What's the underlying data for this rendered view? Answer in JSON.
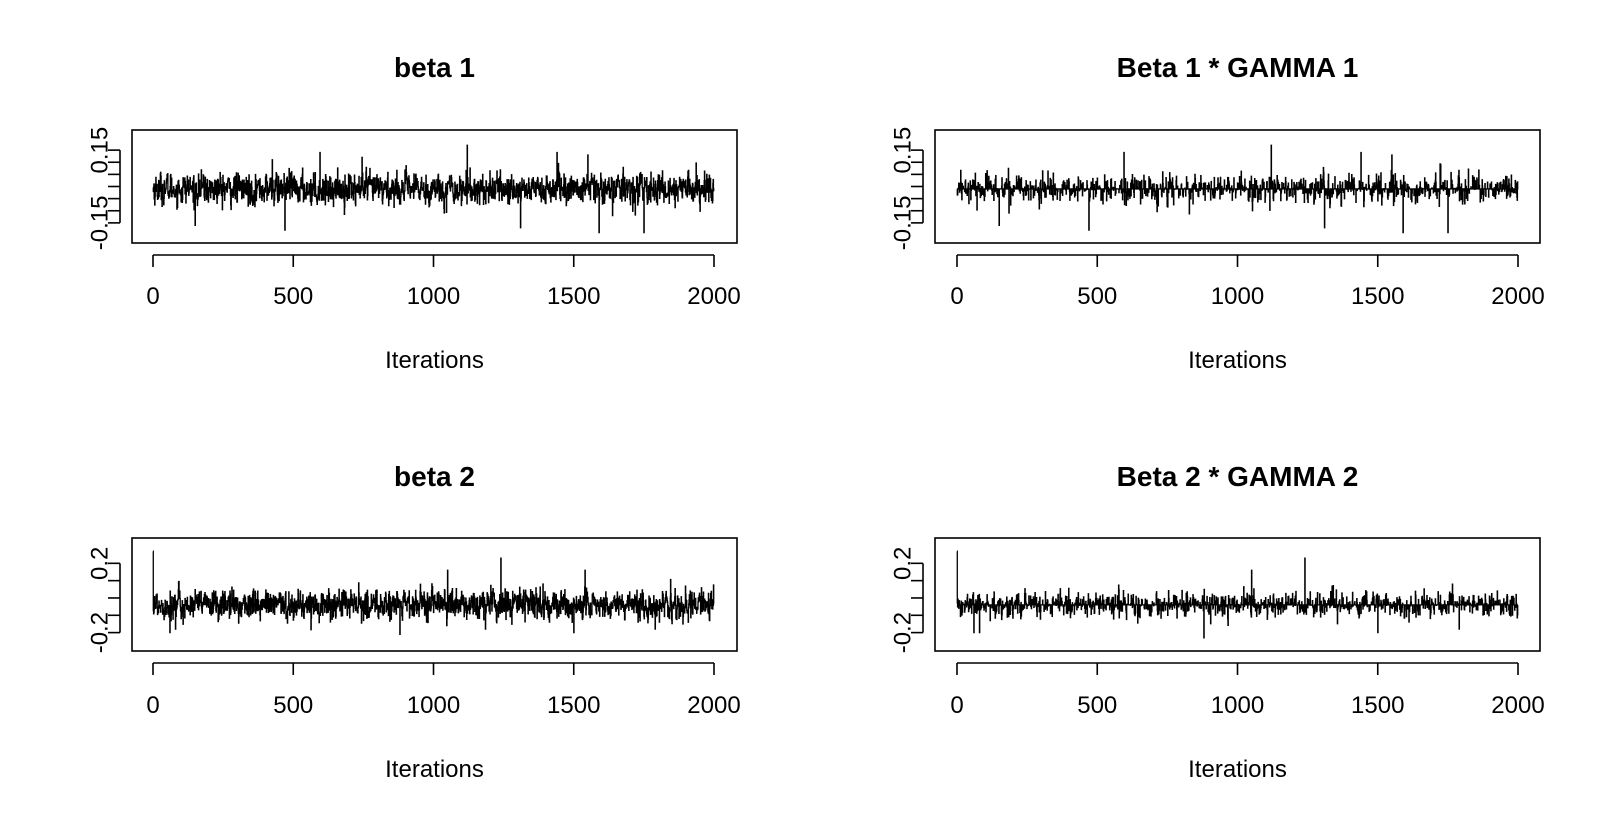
{
  "chart_data": [
    {
      "type": "line",
      "title": "beta 1",
      "xlabel": "Iterations",
      "ylabel": "",
      "xlim": [
        0,
        2000
      ],
      "ylim": [
        -0.2,
        0.2
      ],
      "x_ticks": [
        0,
        500,
        1000,
        1500,
        2000
      ],
      "x_tick_labels": [
        "0",
        "500",
        "1000",
        "1500",
        "2000"
      ],
      "y_ticks": [
        -0.15,
        -0.1,
        -0.05,
        0,
        0.05,
        0.1,
        0.15
      ],
      "y_tick_labels": [
        "-0.15",
        "",
        "",
        "",
        "",
        "",
        "0.15"
      ],
      "n_iterations": 2000,
      "trace_center": -0.01,
      "trace_spread": 0.03,
      "trace_min": -0.19,
      "trace_max": 0.18,
      "spikes": [
        {
          "x": 150,
          "y": -0.16
        },
        {
          "x": 425,
          "y": 0.11
        },
        {
          "x": 470,
          "y": -0.18
        },
        {
          "x": 595,
          "y": 0.14
        },
        {
          "x": 745,
          "y": 0.12
        },
        {
          "x": 1120,
          "y": 0.17
        },
        {
          "x": 1310,
          "y": -0.17
        },
        {
          "x": 1440,
          "y": 0.14
        },
        {
          "x": 1550,
          "y": 0.13
        },
        {
          "x": 1590,
          "y": -0.19
        },
        {
          "x": 1750,
          "y": -0.19
        }
      ]
    },
    {
      "type": "line",
      "title": "Beta  1 * GAMMA 1",
      "xlabel": "Iterations",
      "ylabel": "",
      "xlim": [
        0,
        2000
      ],
      "ylim": [
        -0.2,
        0.2
      ],
      "x_ticks": [
        0,
        500,
        1000,
        1500,
        2000
      ],
      "x_tick_labels": [
        "0",
        "500",
        "1000",
        "1500",
        "2000"
      ],
      "y_ticks": [
        -0.15,
        -0.1,
        -0.05,
        0,
        0.05,
        0.1,
        0.15
      ],
      "y_tick_labels": [
        "-0.15",
        "",
        "",
        "",
        "",
        "",
        "0.15"
      ],
      "n_iterations": 2000,
      "trace_center": -0.01,
      "trace_spread": 0.03,
      "trace_min": -0.19,
      "trace_max": 0.18,
      "zero_fraction": 0.45,
      "spikes": [
        {
          "x": 150,
          "y": -0.16
        },
        {
          "x": 595,
          "y": 0.14
        },
        {
          "x": 470,
          "y": -0.18
        },
        {
          "x": 1120,
          "y": 0.17
        },
        {
          "x": 1310,
          "y": -0.17
        },
        {
          "x": 1440,
          "y": 0.14
        },
        {
          "x": 1550,
          "y": 0.13
        },
        {
          "x": 1590,
          "y": -0.19
        },
        {
          "x": 1750,
          "y": -0.19
        }
      ]
    },
    {
      "type": "line",
      "title": "beta 2",
      "xlabel": "Iterations",
      "ylabel": "",
      "xlim": [
        0,
        2000
      ],
      "ylim": [
        -0.26,
        0.3
      ],
      "x_ticks": [
        0,
        500,
        1000,
        1500,
        2000
      ],
      "x_tick_labels": [
        "0",
        "500",
        "1000",
        "1500",
        "2000"
      ],
      "y_ticks": [
        -0.2,
        -0.1,
        0,
        0.1,
        0.2
      ],
      "y_tick_labels": [
        "-0.2",
        "",
        "",
        "",
        "0.2"
      ],
      "n_iterations": 2000,
      "trace_center": -0.04,
      "trace_spread": 0.04,
      "trace_min": -0.23,
      "trace_max": 0.27,
      "spikes": [
        {
          "x": 0,
          "y": 0.27
        },
        {
          "x": 60,
          "y": -0.2
        },
        {
          "x": 80,
          "y": -0.18
        },
        {
          "x": 880,
          "y": -0.21
        },
        {
          "x": 1050,
          "y": 0.16
        },
        {
          "x": 1240,
          "y": 0.23
        },
        {
          "x": 1500,
          "y": -0.2
        },
        {
          "x": 1790,
          "y": -0.18
        }
      ]
    },
    {
      "type": "line",
      "title": "Beta  2 * GAMMA 2",
      "xlabel": "Iterations",
      "ylabel": "",
      "xlim": [
        0,
        2000
      ],
      "ylim": [
        -0.26,
        0.3
      ],
      "x_ticks": [
        0,
        500,
        1000,
        1500,
        2000
      ],
      "x_tick_labels": [
        "0",
        "500",
        "1000",
        "1500",
        "2000"
      ],
      "y_ticks": [
        -0.2,
        -0.1,
        0,
        0.1,
        0.2
      ],
      "y_tick_labels": [
        "-0.2",
        "",
        "",
        "",
        "0.2"
      ],
      "n_iterations": 2000,
      "trace_center": -0.04,
      "trace_spread": 0.035,
      "trace_min": -0.23,
      "trace_max": 0.27,
      "zero_fraction": 0.4,
      "spikes": [
        {
          "x": 0,
          "y": 0.27
        },
        {
          "x": 60,
          "y": -0.2
        },
        {
          "x": 80,
          "y": -0.2
        },
        {
          "x": 880,
          "y": -0.23
        },
        {
          "x": 1050,
          "y": 0.16
        },
        {
          "x": 1240,
          "y": 0.23
        },
        {
          "x": 1500,
          "y": -0.2
        },
        {
          "x": 1790,
          "y": -0.18
        }
      ]
    }
  ]
}
